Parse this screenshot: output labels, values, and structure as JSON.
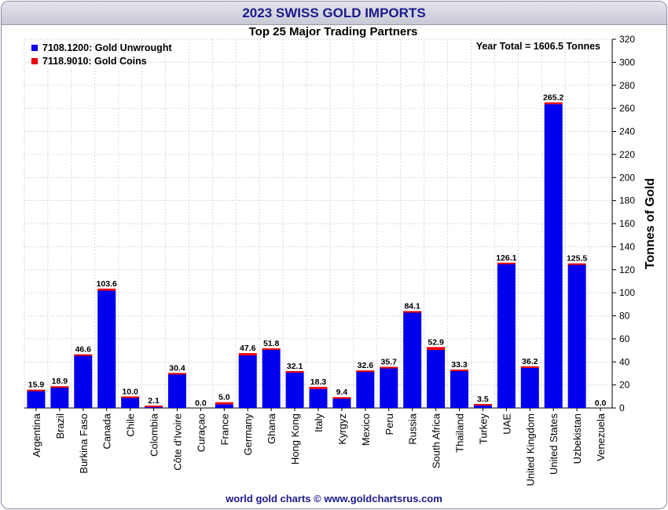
{
  "chart_data": {
    "type": "bar",
    "title": "2023 SWISS GOLD IMPORTS",
    "subtitle": "Top 25 Major Trading Partners",
    "annotation": "Year Total = 1606.5 Tonnes",
    "ylabel": "Tonnes of Gold",
    "ylim": [
      0,
      320
    ],
    "ytick_step": 20,
    "grid": true,
    "legend_position": "top-left",
    "categories": [
      "Argentina",
      "Brazil",
      "Burkina Faso",
      "Canada",
      "Chile",
      "Colombia",
      "Côte d'Ivoire",
      "Curaçao",
      "France",
      "Germany",
      "Ghana",
      "Hong Kong",
      "Italy",
      "Kyrgyz",
      "Mexico",
      "Peru",
      "Russia",
      "South Africa",
      "Thailand",
      "Turkey",
      "UAE",
      "United Kingdom",
      "United States",
      "Uzbekistan",
      "Venezuela"
    ],
    "totals": [
      15.9,
      18.9,
      46.6,
      103.6,
      10.0,
      2.1,
      30.4,
      0.0,
      5.0,
      47.6,
      51.8,
      32.1,
      18.3,
      9.4,
      32.6,
      35.7,
      84.1,
      52.9,
      33.3,
      3.5,
      126.1,
      36.2,
      265.2,
      125.5,
      0.0
    ],
    "total_labels": [
      "15.9",
      "18.9",
      "46.6",
      "103.6",
      "10.0",
      "2.1",
      "30.4",
      "0.0",
      "5.0",
      "47.6",
      "51.8",
      "32.1",
      "18.3",
      "9.4",
      "32.6",
      "35.7",
      "84.1",
      "52.9",
      "33.3",
      "3.5",
      "126.1",
      "36.2",
      "265.2",
      "125.5",
      "0.0"
    ],
    "series": [
      {
        "name": "7108.1200: Gold Unwrought",
        "color": "#0000ee",
        "values": [
          15.6,
          18.6,
          46.3,
          101.8,
          9.8,
          2.0,
          30.2,
          0.0,
          3.2,
          45.6,
          51.6,
          31.9,
          16.5,
          9.2,
          32.4,
          35.5,
          83.9,
          50.4,
          33.1,
          3.3,
          125.9,
          34.8,
          263.7,
          125.3,
          0.0
        ]
      },
      {
        "name": "7118.9010: Gold Coins",
        "color": "#ee0000",
        "values": [
          0.3,
          0.3,
          0.3,
          1.8,
          0.2,
          0.1,
          0.2,
          0.0,
          1.8,
          2.0,
          0.2,
          0.2,
          1.8,
          0.2,
          0.2,
          0.2,
          0.2,
          2.5,
          0.2,
          0.2,
          0.2,
          1.4,
          1.5,
          0.2,
          0.0
        ]
      }
    ]
  },
  "footer": "world gold charts © www.goldchartsrus.com"
}
